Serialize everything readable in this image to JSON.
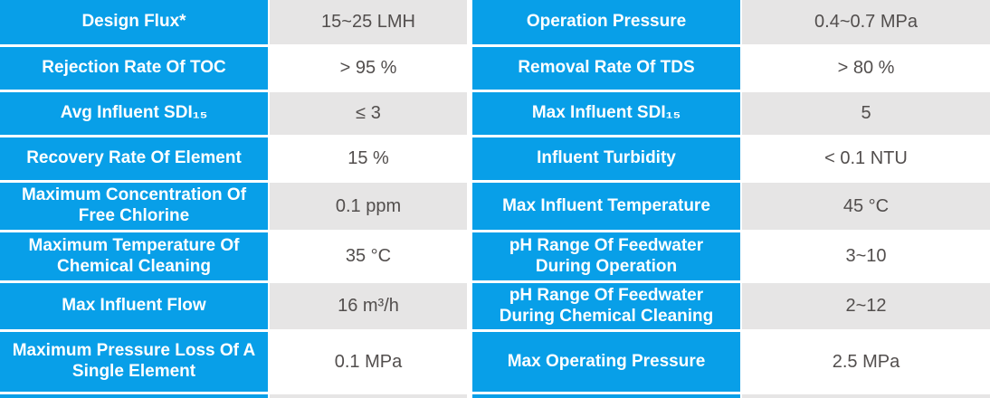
{
  "colors": {
    "label_bg": "#089fe8",
    "value_bg_odd": "#e6e5e5",
    "value_bg_even": "#ffffff",
    "label_text": "#ffffff",
    "value_text": "#524e4d"
  },
  "table": {
    "rows": [
      {
        "left_label": "Design Flux*",
        "left_value": "15~25 LMH",
        "right_label": "Operation Pressure",
        "right_value": "0.4~0.7 MPa"
      },
      {
        "left_label": "Rejection Rate Of TOC",
        "left_value": "> 95 %",
        "right_label": "Removal Rate Of TDS",
        "right_value": "> 80 %"
      },
      {
        "left_label": "Avg Influent SDI₁₅",
        "left_value": "≤ 3",
        "right_label": "Max Influent SDI₁₅",
        "right_value": "5"
      },
      {
        "left_label": "Recovery Rate Of Element",
        "left_value": "15 %",
        "right_label": "Influent Turbidity",
        "right_value": "< 0.1 NTU"
      },
      {
        "left_label": "Maximum Concentration Of Free Chlorine",
        "left_value": "0.1 ppm",
        "right_label": "Max Influent Temperature",
        "right_value": "45 °C"
      },
      {
        "left_label": "Maximum Temperature Of Chemical Cleaning",
        "left_value": "35 °C",
        "right_label": "pH Range Of Feedwater During Operation",
        "right_value": "3~10"
      },
      {
        "left_label": "Max Influent Flow",
        "left_value": "16 m³/h",
        "right_label": "pH Range Of Feedwater During Chemical Cleaning",
        "right_value": "2~12"
      },
      {
        "left_label": "Maximum Pressure Loss Of A Single Element",
        "left_value": "0.1 MPa",
        "right_label": "Max Operating Pressure",
        "right_value": "2.5 MPa"
      }
    ]
  }
}
